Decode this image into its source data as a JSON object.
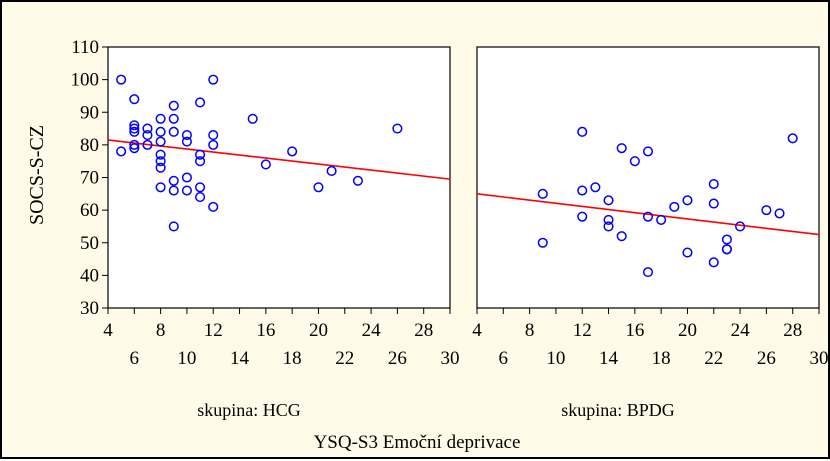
{
  "chart_data": {
    "type": "scatter",
    "ylabel": "SOCS-S-CZ",
    "xlabel": "YSQ-S3  Emoční deprivace",
    "ylim": [
      30,
      110
    ],
    "yticks": [
      "30",
      "40",
      "50",
      "60",
      "70",
      "80",
      "90",
      "100",
      "110"
    ],
    "xlim": [
      4,
      30
    ],
    "xticks_top": [
      "4",
      "8",
      "12",
      "16",
      "20",
      "24",
      "28"
    ],
    "xticks_bottom": [
      "6",
      "10",
      "14",
      "18",
      "22",
      "26",
      "30"
    ],
    "colors": {
      "points": "#0000ff",
      "fit_line": "#ff0000",
      "background": "#fffbe8"
    },
    "panels": [
      {
        "group_label": "skupina: HCG",
        "fit_line": {
          "x": [
            4,
            30
          ],
          "y": [
            81.5,
            69.5
          ]
        },
        "points": [
          [
            5,
            100
          ],
          [
            5,
            78
          ],
          [
            6,
            94
          ],
          [
            6,
            86
          ],
          [
            6,
            85
          ],
          [
            6,
            84
          ],
          [
            6,
            80
          ],
          [
            6,
            79
          ],
          [
            7,
            85
          ],
          [
            7,
            83
          ],
          [
            7,
            80
          ],
          [
            8,
            88
          ],
          [
            8,
            84
          ],
          [
            8,
            81
          ],
          [
            8,
            77
          ],
          [
            8,
            75
          ],
          [
            8,
            73
          ],
          [
            8,
            67
          ],
          [
            9,
            92
          ],
          [
            9,
            88
          ],
          [
            9,
            84
          ],
          [
            9,
            69
          ],
          [
            9,
            66
          ],
          [
            9,
            55
          ],
          [
            10,
            83
          ],
          [
            10,
            81
          ],
          [
            10,
            70
          ],
          [
            10,
            66
          ],
          [
            11,
            93
          ],
          [
            11,
            77
          ],
          [
            11,
            75
          ],
          [
            11,
            67
          ],
          [
            11,
            64
          ],
          [
            12,
            100
          ],
          [
            12,
            83
          ],
          [
            12,
            80
          ],
          [
            12,
            61
          ],
          [
            15,
            88
          ],
          [
            16,
            74
          ],
          [
            18,
            78
          ],
          [
            20,
            67
          ],
          [
            21,
            72
          ],
          [
            23,
            69
          ],
          [
            26,
            85
          ]
        ]
      },
      {
        "group_label": "skupina: BPDG",
        "fit_line": {
          "x": [
            4,
            30
          ],
          "y": [
            65,
            52.5
          ]
        },
        "points": [
          [
            9,
            65
          ],
          [
            9,
            50
          ],
          [
            12,
            84
          ],
          [
            12,
            66
          ],
          [
            12,
            58
          ],
          [
            13,
            67
          ],
          [
            14,
            63
          ],
          [
            14,
            57
          ],
          [
            14,
            55
          ],
          [
            15,
            79
          ],
          [
            15,
            52
          ],
          [
            16,
            75
          ],
          [
            17,
            78
          ],
          [
            17,
            58
          ],
          [
            17,
            41
          ],
          [
            18,
            57
          ],
          [
            19,
            61
          ],
          [
            20,
            63
          ],
          [
            20,
            47
          ],
          [
            22,
            68
          ],
          [
            22,
            62
          ],
          [
            22,
            44
          ],
          [
            23,
            51
          ],
          [
            23,
            48
          ],
          [
            23,
            48
          ],
          [
            24,
            55
          ],
          [
            26,
            60
          ],
          [
            27,
            59
          ],
          [
            28,
            82
          ]
        ]
      }
    ]
  }
}
